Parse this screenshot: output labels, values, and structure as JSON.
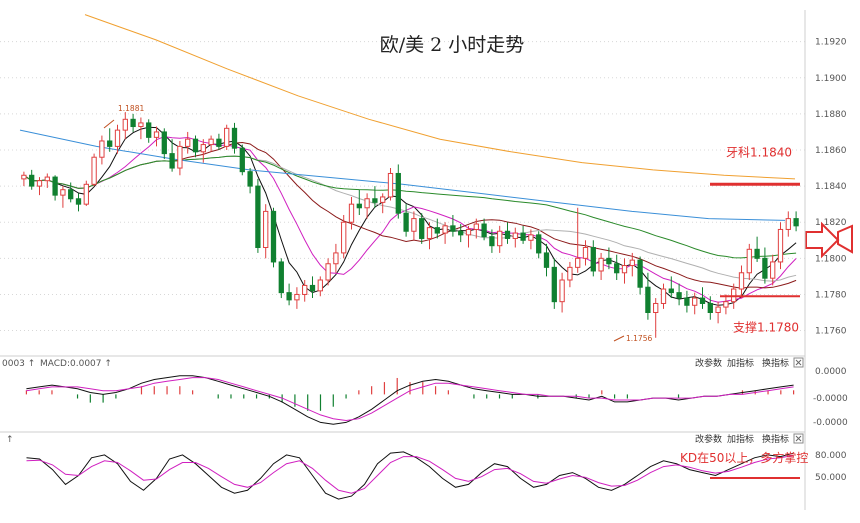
{
  "chart_data": {
    "type": "candlestick",
    "title": "欧/美 2 小时走势",
    "main_axis": {
      "ticks": [
        "1.1920",
        "1.1900",
        "1.1880",
        "1.1860",
        "1.1840",
        "1.1820",
        "1.1800",
        "1.1780",
        "1.1760"
      ],
      "ylim": [
        1.1752,
        1.1932
      ]
    },
    "annotations": {
      "resistance_label": "牙科1.1840",
      "resistance_level": 1.1841,
      "support_label": "支撑1.1780",
      "support_level": 1.1779,
      "high_label": "1.1881",
      "high_value": 1.1881,
      "low_label": "1.1756",
      "low_value": 1.1756
    },
    "candles": [
      [
        1.1844,
        1.1848,
        1.184,
        1.1846
      ],
      [
        1.1846,
        1.1849,
        1.1838,
        1.184
      ],
      [
        1.184,
        1.1845,
        1.1835,
        1.1843
      ],
      [
        1.1843,
        1.1847,
        1.1839,
        1.1845
      ],
      [
        1.1845,
        1.1846,
        1.1832,
        1.1835
      ],
      [
        1.1835,
        1.184,
        1.1828,
        1.1838
      ],
      [
        1.1838,
        1.1842,
        1.1831,
        1.1833
      ],
      [
        1.1833,
        1.1836,
        1.1826,
        1.183
      ],
      [
        1.183,
        1.1843,
        1.1829,
        1.1841
      ],
      [
        1.1841,
        1.1858,
        1.184,
        1.1856
      ],
      [
        1.1856,
        1.1868,
        1.1852,
        1.1865
      ],
      [
        1.1865,
        1.1872,
        1.1859,
        1.1862
      ],
      [
        1.1862,
        1.1874,
        1.1858,
        1.1871
      ],
      [
        1.1871,
        1.1881,
        1.1866,
        1.1877
      ],
      [
        1.1877,
        1.188,
        1.187,
        1.1873
      ],
      [
        1.1873,
        1.1878,
        1.1866,
        1.1875
      ],
      [
        1.1875,
        1.1877,
        1.1864,
        1.1867
      ],
      [
        1.1867,
        1.1873,
        1.1862,
        1.187
      ],
      [
        1.187,
        1.1872,
        1.1855,
        1.1858
      ],
      [
        1.1858,
        1.1866,
        1.1848,
        1.185
      ],
      [
        1.185,
        1.1865,
        1.1846,
        1.1862
      ],
      [
        1.1862,
        1.187,
        1.1858,
        1.1866
      ],
      [
        1.1866,
        1.1868,
        1.1856,
        1.1859
      ],
      [
        1.1859,
        1.1866,
        1.1853,
        1.1863
      ],
      [
        1.1863,
        1.1868,
        1.1859,
        1.1866
      ],
      [
        1.1866,
        1.1869,
        1.186,
        1.1862
      ],
      [
        1.1862,
        1.1874,
        1.186,
        1.1872
      ],
      [
        1.1872,
        1.1875,
        1.1858,
        1.1861
      ],
      [
        1.1861,
        1.1863,
        1.1846,
        1.1848
      ],
      [
        1.1848,
        1.185,
        1.1836,
        1.184
      ],
      [
        1.184,
        1.1844,
        1.1803,
        1.1806
      ],
      [
        1.1806,
        1.183,
        1.18,
        1.1826
      ],
      [
        1.1826,
        1.1828,
        1.1795,
        1.1798
      ],
      [
        1.1798,
        1.18,
        1.1778,
        1.1781
      ],
      [
        1.1781,
        1.1786,
        1.1774,
        1.1777
      ],
      [
        1.1777,
        1.1784,
        1.1772,
        1.178
      ],
      [
        1.178,
        1.1788,
        1.1776,
        1.1785
      ],
      [
        1.1785,
        1.179,
        1.1778,
        1.1782
      ],
      [
        1.1782,
        1.179,
        1.1779,
        1.1788
      ],
      [
        1.1788,
        1.18,
        1.1785,
        1.1797
      ],
      [
        1.1797,
        1.1808,
        1.1792,
        1.1803
      ],
      [
        1.1803,
        1.1824,
        1.18,
        1.182
      ],
      [
        1.182,
        1.1834,
        1.1816,
        1.183
      ],
      [
        1.183,
        1.1838,
        1.1824,
        1.1828
      ],
      [
        1.1828,
        1.1836,
        1.1822,
        1.1833
      ],
      [
        1.1833,
        1.184,
        1.1828,
        1.1831
      ],
      [
        1.1831,
        1.1836,
        1.1825,
        1.1834
      ],
      [
        1.1834,
        1.185,
        1.1832,
        1.1847
      ],
      [
        1.1847,
        1.1852,
        1.1822,
        1.1825
      ],
      [
        1.1825,
        1.183,
        1.1812,
        1.1815
      ],
      [
        1.1815,
        1.1826,
        1.181,
        1.1822
      ],
      [
        1.1822,
        1.1825,
        1.1808,
        1.1811
      ],
      [
        1.1811,
        1.182,
        1.1805,
        1.1817
      ],
      [
        1.1817,
        1.1822,
        1.1811,
        1.1814
      ],
      [
        1.1814,
        1.182,
        1.1808,
        1.1818
      ],
      [
        1.1818,
        1.1824,
        1.1812,
        1.1815
      ],
      [
        1.1815,
        1.1819,
        1.1809,
        1.1813
      ],
      [
        1.1813,
        1.1818,
        1.1806,
        1.1816
      ],
      [
        1.1816,
        1.1822,
        1.1811,
        1.1819
      ],
      [
        1.1819,
        1.1822,
        1.181,
        1.1812
      ],
      [
        1.1812,
        1.1816,
        1.1803,
        1.1807
      ],
      [
        1.1807,
        1.1818,
        1.1803,
        1.1815
      ],
      [
        1.1815,
        1.182,
        1.1808,
        1.1811
      ],
      [
        1.1811,
        1.1817,
        1.1806,
        1.1814
      ],
      [
        1.1814,
        1.1818,
        1.1808,
        1.181
      ],
      [
        1.181,
        1.1816,
        1.1805,
        1.1813
      ],
      [
        1.1813,
        1.1815,
        1.18,
        1.1803
      ],
      [
        1.1803,
        1.1808,
        1.179,
        1.1795
      ],
      [
        1.1795,
        1.18,
        1.1772,
        1.1776
      ],
      [
        1.1776,
        1.1792,
        1.177,
        1.1788
      ],
      [
        1.1788,
        1.1798,
        1.1784,
        1.1795
      ],
      [
        1.1795,
        1.1828,
        1.1792,
        1.18
      ],
      [
        1.18,
        1.181,
        1.1796,
        1.1806
      ],
      [
        1.1806,
        1.181,
        1.179,
        1.1793
      ],
      [
        1.1793,
        1.1803,
        1.1788,
        1.18
      ],
      [
        1.18,
        1.1806,
        1.1794,
        1.1797
      ],
      [
        1.1797,
        1.1802,
        1.1788,
        1.1792
      ],
      [
        1.1792,
        1.18,
        1.1786,
        1.1796
      ],
      [
        1.1796,
        1.1803,
        1.179,
        1.1799
      ],
      [
        1.1799,
        1.1801,
        1.178,
        1.1784
      ],
      [
        1.1784,
        1.1792,
        1.1766,
        1.177
      ],
      [
        1.177,
        1.1778,
        1.1756,
        1.1775
      ],
      [
        1.1775,
        1.1786,
        1.1772,
        1.1783
      ],
      [
        1.1783,
        1.179,
        1.1778,
        1.1781
      ],
      [
        1.1781,
        1.1786,
        1.1774,
        1.1778
      ],
      [
        1.1778,
        1.1782,
        1.177,
        1.1774
      ],
      [
        1.1774,
        1.1781,
        1.1769,
        1.1778
      ],
      [
        1.1778,
        1.1784,
        1.1772,
        1.1775
      ],
      [
        1.1775,
        1.1779,
        1.1766,
        1.177
      ],
      [
        1.177,
        1.1776,
        1.1764,
        1.1773
      ],
      [
        1.1773,
        1.178,
        1.1769,
        1.1776
      ],
      [
        1.1776,
        1.1786,
        1.1772,
        1.1783
      ],
      [
        1.1783,
        1.1796,
        1.1778,
        1.1792
      ],
      [
        1.1792,
        1.1808,
        1.1788,
        1.1805
      ],
      [
        1.1805,
        1.1812,
        1.1798,
        1.18
      ],
      [
        1.18,
        1.1806,
        1.1786,
        1.1789
      ],
      [
        1.1789,
        1.1802,
        1.1785,
        1.1798
      ],
      [
        1.1798,
        1.182,
        1.1794,
        1.1816
      ],
      [
        1.1816,
        1.1826,
        1.1812,
        1.1822
      ],
      [
        1.1822,
        1.1826,
        1.1815,
        1.1818
      ]
    ],
    "macd_panel": {
      "label_left": "0003 ↑",
      "label_main": "MACD:0.0007 ↑",
      "ticks": [
        "0.0000",
        "-0.0000",
        "-0.0000"
      ],
      "tools": [
        "改参数",
        "加指标",
        "换指标"
      ],
      "dif": [
        0.3,
        0.4,
        0.5,
        0.4,
        0.3,
        0.1,
        0.0,
        0.1,
        0.3,
        0.6,
        0.8,
        0.9,
        1.0,
        1.0,
        0.9,
        0.7,
        0.5,
        0.3,
        0.1,
        -0.1,
        -0.4,
        -0.8,
        -1.2,
        -1.5,
        -1.6,
        -1.5,
        -1.2,
        -0.8,
        -0.3,
        0.2,
        0.5,
        0.7,
        0.8,
        0.7,
        0.5,
        0.3,
        0.2,
        0.1,
        0.0,
        0.0,
        -0.1,
        -0.1,
        -0.1,
        -0.2,
        -0.3,
        -0.1,
        -0.4,
        -0.4,
        -0.3,
        -0.2,
        -0.2,
        -0.3,
        -0.2,
        -0.1,
        -0.1,
        0.0,
        0.1,
        0.2,
        0.3,
        0.4,
        0.5
      ],
      "dea": [
        0.2,
        0.3,
        0.4,
        0.4,
        0.4,
        0.3,
        0.2,
        0.2,
        0.3,
        0.4,
        0.6,
        0.7,
        0.8,
        0.9,
        0.9,
        0.8,
        0.6,
        0.4,
        0.2,
        0.0,
        -0.2,
        -0.5,
        -0.8,
        -1.1,
        -1.3,
        -1.4,
        -1.3,
        -1.0,
        -0.6,
        -0.2,
        0.2,
        0.4,
        0.6,
        0.6,
        0.5,
        0.4,
        0.3,
        0.2,
        0.1,
        0.0,
        0.0,
        -0.1,
        -0.1,
        -0.1,
        -0.2,
        -0.2,
        -0.3,
        -0.3,
        -0.3,
        -0.2,
        -0.2,
        -0.2,
        -0.2,
        -0.1,
        -0.1,
        0.0,
        0.0,
        0.1,
        0.2,
        0.3,
        0.4
      ]
    },
    "kd_panel": {
      "label_left": "↑",
      "ticks": [
        "80.000",
        "50.000"
      ],
      "tools": [
        "改参数",
        "加指标",
        "换指标"
      ],
      "annotation": "KD在50以上，多方掌控",
      "k": [
        80,
        78,
        60,
        35,
        50,
        80,
        85,
        70,
        40,
        25,
        45,
        78,
        85,
        70,
        50,
        30,
        20,
        25,
        45,
        70,
        85,
        80,
        50,
        20,
        10,
        15,
        35,
        70,
        88,
        90,
        80,
        65,
        45,
        30,
        35,
        55,
        70,
        65,
        45,
        30,
        35,
        50,
        55,
        45,
        30,
        25,
        35,
        50,
        65,
        75,
        70,
        60,
        55,
        50,
        60,
        70,
        80,
        85,
        82,
        88
      ],
      "d": [
        75,
        76,
        68,
        52,
        50,
        65,
        75,
        72,
        58,
        42,
        44,
        60,
        72,
        72,
        62,
        48,
        35,
        30,
        38,
        55,
        70,
        75,
        62,
        42,
        25,
        20,
        28,
        50,
        72,
        82,
        82,
        74,
        60,
        45,
        40,
        48,
        60,
        62,
        53,
        40,
        37,
        44,
        50,
        47,
        38,
        32,
        33,
        42,
        55,
        65,
        68,
        64,
        58,
        54,
        57,
        64,
        72,
        78,
        80,
        84
      ]
    }
  }
}
